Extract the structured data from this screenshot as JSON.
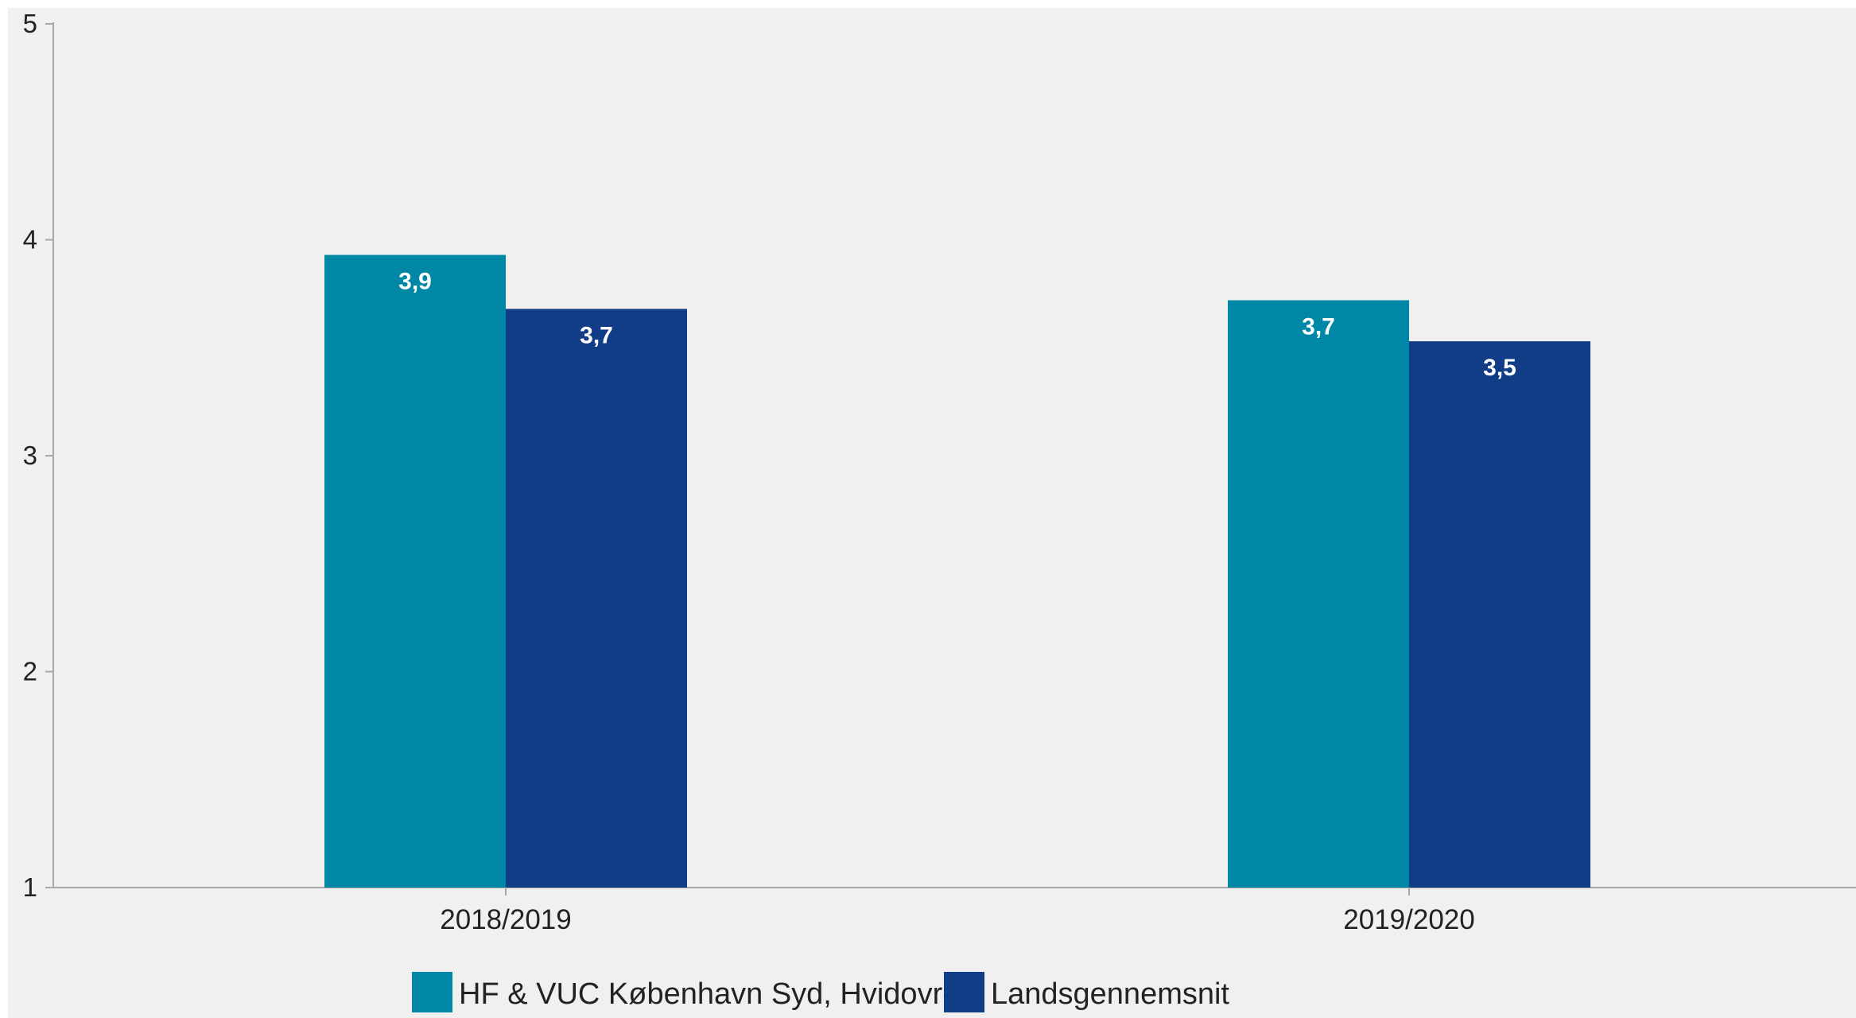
{
  "chart_data": {
    "type": "bar",
    "categories": [
      "2018/2019",
      "2019/2020"
    ],
    "series": [
      {
        "name": "HF & VUC København Syd, Hvidovre",
        "values": [
          3.93,
          3.72
        ],
        "labels": [
          "3,9",
          "3,7"
        ],
        "color": "#0087A5"
      },
      {
        "name": "Landsgennemsnit",
        "values": [
          3.68,
          3.53
        ],
        "labels": [
          "3,7",
          "3,5"
        ],
        "color": "#113D86"
      }
    ],
    "yticks": [
      "1",
      "2",
      "3",
      "4",
      "5"
    ],
    "ylim": [
      1,
      5
    ],
    "grid": false,
    "legend": "bottom",
    "title": "",
    "xlabel": "",
    "ylabel": "",
    "background": "#F0F0F0",
    "axis_color": "#A8A8A8"
  }
}
